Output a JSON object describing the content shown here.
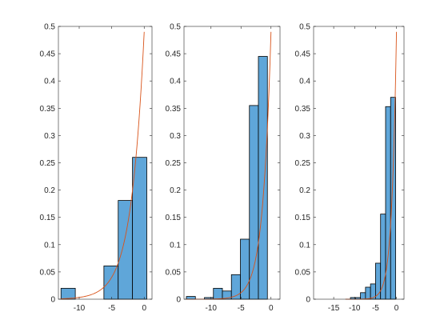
{
  "colors": {
    "bar_fill": "#5fa6d9",
    "bar_edge": "#000000",
    "pdf_line": "#d95319",
    "axis": "#262626"
  },
  "chart_data": [
    {
      "type": "bar",
      "title": "",
      "xlabel": "",
      "ylabel": "",
      "xlim": [
        -13.2,
        1.2
      ],
      "ylim": [
        0,
        0.5
      ],
      "xticks": [
        -10,
        -5,
        0
      ],
      "xtick_labels": [
        "-10",
        "-5",
        "0"
      ],
      "yticks": [
        0,
        0.05,
        0.1,
        0.15,
        0.2,
        0.25,
        0.3,
        0.35,
        0.4,
        0.45,
        0.5
      ],
      "ytick_labels": [
        "0",
        "0.05",
        "0.1",
        "0.15",
        "0.2",
        "0.25",
        "0.3",
        "0.35",
        "0.4",
        "0.45",
        "0.5"
      ],
      "bin_edges": [
        -12.8,
        -10.6,
        -8.4,
        -6.2,
        -4.0,
        -1.8,
        0.4
      ],
      "values": [
        0.02,
        0,
        0,
        0.061,
        0.181,
        0.26,
        0.48
      ],
      "bin_edges_note": "",
      "curve": {
        "type": "line",
        "peak": 0.49,
        "scale": 2.0,
        "xmin": -12.8,
        "xmax": 0
      }
    },
    {
      "type": "bar",
      "title": "",
      "xlabel": "",
      "ylabel": "",
      "xlim": [
        -14.5,
        1.5
      ],
      "ylim": [
        0,
        0.5
      ],
      "xticks": [
        -10,
        -5,
        0
      ],
      "xtick_labels": [
        "-10",
        "-5",
        "0"
      ],
      "yticks": [
        0,
        0.05,
        0.1,
        0.15,
        0.2,
        0.25,
        0.3,
        0.35,
        0.4,
        0.45,
        0.5
      ],
      "ytick_labels": [
        "0",
        "0.05",
        "0.1",
        "0.15",
        "0.2",
        "0.25",
        "0.3",
        "0.35",
        "0.4",
        "0.45",
        "0.5"
      ],
      "bin_edges": [
        -14.1,
        -12.6,
        -11.1,
        -9.6,
        -8.1,
        -6.6,
        -5.1,
        -3.6,
        -2.1,
        -0.6,
        0.9
      ],
      "values": [
        0.005,
        0,
        0.003,
        0.02,
        0.015,
        0.045,
        0.11,
        0.355,
        0.445,
        0
      ],
      "curve": {
        "type": "line",
        "peak": 0.49,
        "scale": 1.35,
        "xmin": -14.1,
        "xmax": 0
      }
    },
    {
      "type": "bar",
      "title": "",
      "xlabel": "",
      "ylabel": "",
      "xlim": [
        -19.8,
        1.8
      ],
      "ylim": [
        0,
        0.5
      ],
      "xticks": [
        -15,
        -10,
        -5,
        0
      ],
      "xtick_labels": [
        "-15",
        "-10",
        "-5",
        "0"
      ],
      "yticks": [
        0,
        0.05,
        0.1,
        0.15,
        0.2,
        0.25,
        0.3,
        0.35,
        0.4,
        0.45,
        0.5
      ],
      "ytick_labels": [
        "0",
        "0.05",
        "0.1",
        "0.15",
        "0.2",
        "0.25",
        "0.3",
        "0.35",
        "0.4",
        "0.45",
        "0.5"
      ],
      "bin_edges": [
        -12.2,
        -11.0,
        -9.8,
        -8.6,
        -7.4,
        -6.2,
        -5.0,
        -3.8,
        -2.6,
        -1.4,
        -0.2,
        1.0
      ],
      "values": [
        0,
        0.003,
        0.003,
        0.012,
        0.022,
        0.028,
        0.066,
        0.156,
        0.353,
        0.37,
        0
      ],
      "curve": {
        "type": "line",
        "peak": 0.49,
        "scale": 1.1,
        "xmin": -12.2,
        "xmax": 0
      }
    }
  ]
}
